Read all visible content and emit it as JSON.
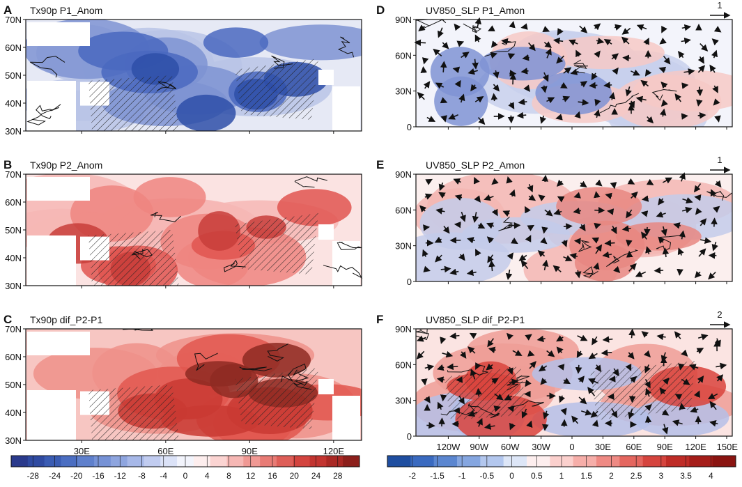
{
  "figure": {
    "left_panels": [
      {
        "letter": "A",
        "title": "Tx90p P1_Anom",
        "lat_ticks": [
          "70N",
          "60N",
          "50N",
          "40N",
          "30N"
        ],
        "lon_ticks": [],
        "colors": [
          "#e6e9f5",
          "#b8c4e6",
          "#7e93d2",
          "#4a68c0",
          "#2e4fa8"
        ]
      },
      {
        "letter": "B",
        "title": "Tx90p P2_Anom",
        "lat_ticks": [
          "70N",
          "60N",
          "50N",
          "40N",
          "30N"
        ],
        "lon_ticks": [],
        "colors": [
          "#fbe3e2",
          "#f6b7b5",
          "#ee8580",
          "#e05550",
          "#c83d3a"
        ]
      },
      {
        "letter": "C",
        "title": "Tx90p  dif_P2-P1",
        "lat_ticks": [
          "70N",
          "60N",
          "50N",
          "40N",
          "30N"
        ],
        "lon_ticks": [
          "30E",
          "60E",
          "90E",
          "120E"
        ],
        "colors": [
          "#f7c6c2",
          "#ef908a",
          "#e2574f",
          "#c93a32",
          "#8e2a22"
        ]
      }
    ],
    "right_panels": [
      {
        "letter": "D",
        "title": "UV850_SLP P1_Amon",
        "lat_ticks": [
          "90N",
          "60N",
          "30N",
          "0"
        ],
        "lon_ticks": [],
        "ref_vector": "1",
        "colors": [
          "#f3f4fb",
          "#c8d0ec",
          "#f6c9c6",
          "#7f93d3"
        ]
      },
      {
        "letter": "E",
        "title": "UV850_SLP P2_Amon",
        "lat_ticks": [
          "90N",
          "60N",
          "30N",
          "0"
        ],
        "lon_ticks": [],
        "ref_vector": "1",
        "colors": [
          "#fbefee",
          "#f3b6b3",
          "#c3cbea",
          "#e88781"
        ]
      },
      {
        "letter": "F",
        "title": "UV850_SLP dif_P2-P1",
        "lat_ticks": [
          "90N",
          "60N",
          "30N",
          "0"
        ],
        "lon_ticks": [
          "120W",
          "90W",
          "60W",
          "30W",
          "0",
          "30E",
          "60E",
          "90E",
          "120E",
          "150E"
        ],
        "ref_vector": "2",
        "colors": [
          "#fbe4e2",
          "#ef9d97",
          "#b5c0e7",
          "#d9433c"
        ]
      }
    ]
  },
  "colorbars": {
    "left": {
      "labels": [
        "-28",
        "-24",
        "-20",
        "-16",
        "-12",
        "-8",
        "-4",
        "0",
        "4",
        "8",
        "12",
        "16",
        "20",
        "24",
        "28"
      ],
      "colors": [
        "#2a3a8c",
        "#2f4aa1",
        "#3a5cb3",
        "#4b6ec2",
        "#5f80cc",
        "#7692d6",
        "#8ea5df",
        "#a7b8e8",
        "#c1ccf0",
        "#dbe2f7",
        "#f2f4fc",
        "#fdeeee",
        "#fbd4d2",
        "#f6b7b4",
        "#f09994",
        "#e87b75",
        "#de5e58",
        "#d3443f",
        "#c23430",
        "#a92824",
        "#8c1f1b"
      ]
    },
    "right": {
      "labels": [
        "-2",
        "-1.5",
        "-1",
        "-0.5",
        "0",
        "0.5",
        "1",
        "1.5",
        "2",
        "2.5",
        "3",
        "3.5",
        "4"
      ],
      "colors": [
        "#1f4ea0",
        "#3a6ac0",
        "#5b86d0",
        "#85a6e0",
        "#b3c7ee",
        "#dde6f7",
        "#fdeeee",
        "#fbd0cd",
        "#f6aea9",
        "#ef8a84",
        "#e4665f",
        "#d5443e",
        "#bf2c27",
        "#a51d19",
        "#8a1411"
      ]
    }
  }
}
